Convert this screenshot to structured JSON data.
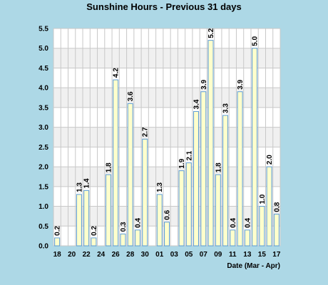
{
  "chart_data": {
    "type": "bar",
    "title": "Sunshine Hours - Previous 31 days",
    "xlabel": "Date (Mar - Apr)",
    "ylabel": "",
    "ylim": [
      0,
      5.5
    ],
    "yticks": [
      "0.0",
      "0.5",
      "1.0",
      "1.5",
      "2.0",
      "2.5",
      "3.0",
      "3.5",
      "4.0",
      "4.5",
      "5.0",
      "5.5"
    ],
    "categories": [
      "18",
      "19",
      "20",
      "21",
      "22",
      "23",
      "24",
      "25",
      "26",
      "27",
      "28",
      "29",
      "30",
      "31",
      "01",
      "02",
      "03",
      "04",
      "05",
      "06",
      "07",
      "08",
      "09",
      "10",
      "11",
      "12",
      "13",
      "14",
      "15",
      "16",
      "17"
    ],
    "xtick_labels": [
      "18",
      "20",
      "22",
      "24",
      "26",
      "28",
      "30",
      "01",
      "03",
      "05",
      "07",
      "09",
      "11",
      "13",
      "15",
      "17"
    ],
    "values": [
      0.2,
      0,
      0,
      1.3,
      1.4,
      0.2,
      0,
      1.8,
      4.2,
      0.3,
      3.6,
      0.4,
      2.7,
      0,
      1.3,
      0.6,
      0,
      1.9,
      2.1,
      3.4,
      3.9,
      5.2,
      1.8,
      3.3,
      0.4,
      3.9,
      0.4,
      5.0,
      1.0,
      2.0,
      0.8
    ],
    "data_labels": [
      "0.2",
      "",
      "",
      "1.3",
      "1.4",
      "0.2",
      "",
      "1.8",
      "4.2",
      "0.3",
      "3.6",
      "0.4",
      "2.7",
      "",
      "1.3",
      "0.6",
      "",
      "1.9",
      "2.1",
      "3.4",
      "3.9",
      "5.2",
      "1.8",
      "3.3",
      "0.4",
      "3.9",
      "0.4",
      "5.0",
      "1.0",
      "2.0",
      "0.8"
    ],
    "grid": true,
    "colors": {
      "background": "#add8e6",
      "band_light": "#ffffff",
      "band_dark": "#f0f0f0",
      "grid": "#c8c8c8",
      "bar_fill": "#ffffcc",
      "bar_border": "#5b9bd5"
    }
  }
}
